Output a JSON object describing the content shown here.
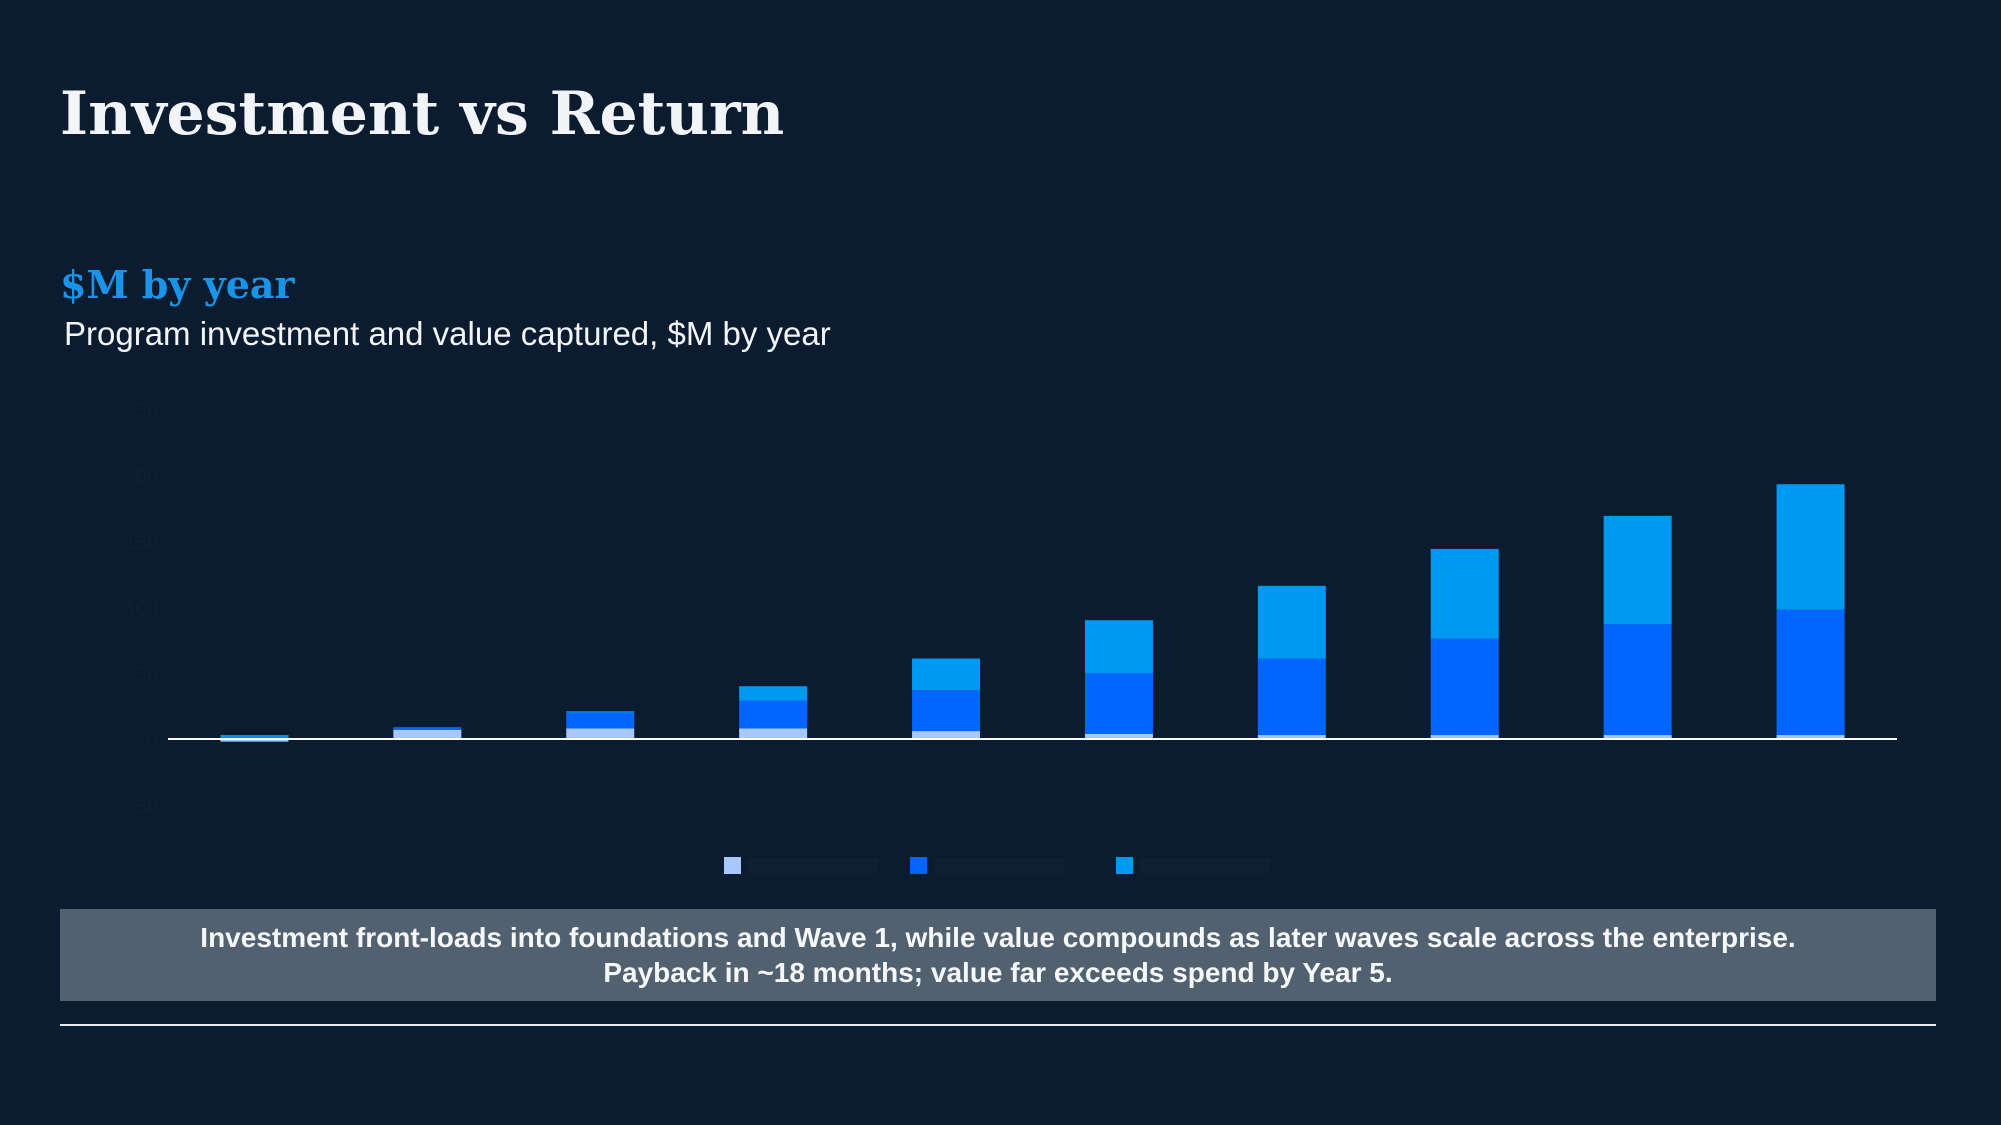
{
  "slide": {
    "title": "Investment vs Return",
    "subtitle": "$M by year",
    "caption": "Program investment and value captured, $M by year",
    "callout_line1": "Investment front-loads into foundations and Wave 1, while value compounds as later waves scale across the enterprise.",
    "callout_line2": "Payback in ~18 months; value far exceeds spend by Year 5."
  },
  "colors": {
    "background": "#0b1c30",
    "investment": "#a6c8ff",
    "series2": "#0066ff",
    "series3": "#0099f2",
    "axis": "#ffffff",
    "faint_text": "#0e2034"
  },
  "chart_data": {
    "type": "bar",
    "stacked": true,
    "categories": [
      "",
      "",
      "",
      "",
      "",
      "",
      "",
      "",
      "",
      ""
    ],
    "series": [
      {
        "values": [
          -2,
          7,
          8,
          8,
          6,
          4,
          3,
          3,
          3,
          3
        ]
      },
      {
        "values": [
          1,
          2,
          12,
          21,
          31,
          46,
          58,
          73,
          84,
          95
        ]
      },
      {
        "values": [
          2,
          0,
          1,
          11,
          24,
          40,
          55,
          68,
          82,
          95
        ]
      }
    ],
    "ylim": [
      -50,
      250
    ],
    "legend": "bottom",
    "grid": false
  }
}
